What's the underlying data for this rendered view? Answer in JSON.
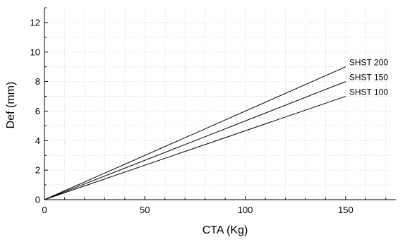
{
  "chart_data": {
    "type": "line",
    "title": "",
    "xlabel": "CTA (Kg)",
    "ylabel": "Def (mm)",
    "xlim": [
      0,
      175
    ],
    "ylim": [
      0,
      13
    ],
    "x_ticks": [
      0,
      50,
      100,
      150
    ],
    "y_ticks": [
      0,
      2,
      4,
      6,
      8,
      10,
      12
    ],
    "grid": true,
    "legend": "none",
    "line_color": "#000000",
    "grid_color": "#cfcfcf",
    "series": [
      {
        "name": "SHST 200",
        "x": [
          0,
          150
        ],
        "y": [
          0,
          9.0
        ]
      },
      {
        "name": "SHST 150",
        "x": [
          0,
          150
        ],
        "y": [
          0,
          8.0
        ]
      },
      {
        "name": "SHST 100",
        "x": [
          0,
          150
        ],
        "y": [
          0,
          7.0
        ]
      }
    ]
  }
}
